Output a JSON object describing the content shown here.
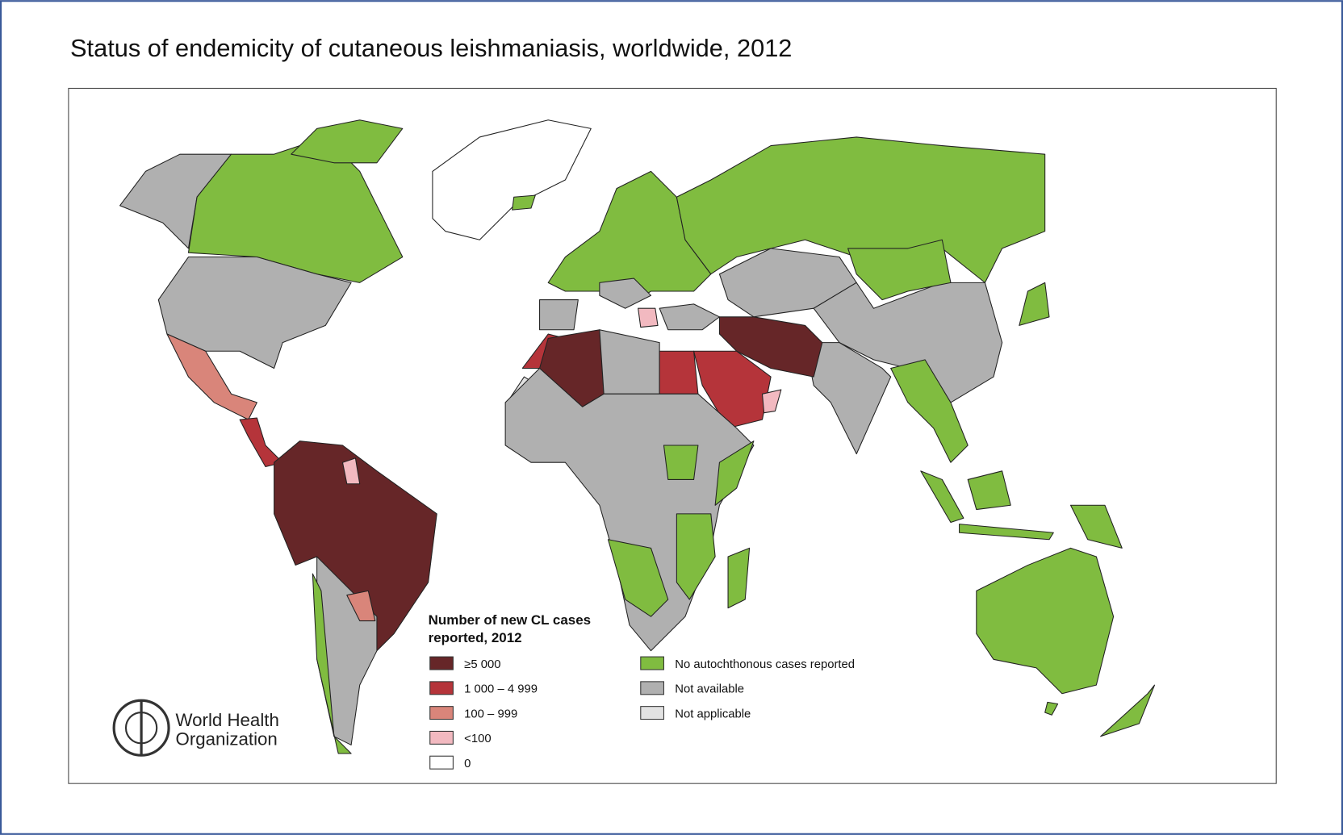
{
  "header": {
    "title": "Status of endemicity of cutaneous leishmaniasis, worldwide, 2012"
  },
  "legend": {
    "title_lines": [
      "Number of new CL cases",
      "reported, 2012"
    ],
    "items": [
      {
        "label": "≥5 000",
        "color": "#662628"
      },
      {
        "label": "1 000 – 4 999",
        "color": "#b5343a"
      },
      {
        "label": "100 – 999",
        "color": "#d9857a"
      },
      {
        "label": "<100",
        "color": "#f2b9c0"
      },
      {
        "label": "0",
        "color": "#ffffff"
      },
      {
        "label": "No autochthonous cases reported",
        "color": "#80bc40"
      },
      {
        "label": "Not available",
        "color": "#b0b0b0"
      },
      {
        "label": "Not applicable",
        "color": "#e2e2e2"
      }
    ]
  },
  "logo": {
    "lines": [
      "World Health",
      "Organization"
    ]
  }
}
